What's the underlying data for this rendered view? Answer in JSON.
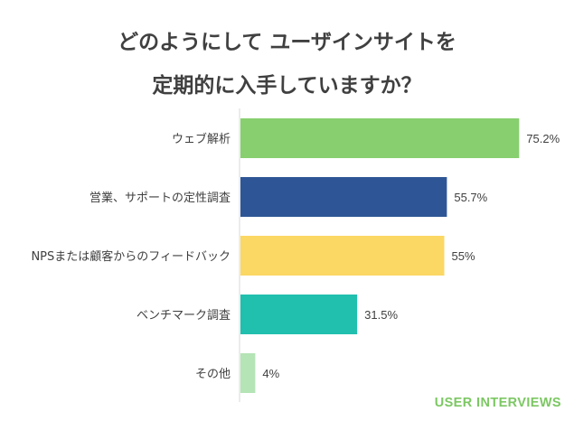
{
  "title": {
    "line1": "どのようにして ユーザインサイトを",
    "line2": "定期的に入手していますか？"
  },
  "brand": {
    "text": "USER INTERVIEWS",
    "color": "#7cc763"
  },
  "chart_data": {
    "type": "bar",
    "orientation": "horizontal",
    "categories": [
      "ウェブ解析",
      "営業、サポートの定性調査",
      "NPSまたは顧客からのフィードバック",
      "ベンチマーク調査",
      "その他"
    ],
    "values": [
      75.2,
      55.7,
      55,
      31.5,
      4
    ],
    "value_labels": [
      "75.2%",
      "55.7%",
      "55%",
      "31.5%",
      "4%"
    ],
    "colors": [
      "#88cf6f",
      "#2e5696",
      "#fbd764",
      "#21bfae",
      "#b5e4b6"
    ],
    "xlim": [
      0,
      100
    ],
    "unit": "%",
    "grid": false,
    "legend": "none"
  }
}
